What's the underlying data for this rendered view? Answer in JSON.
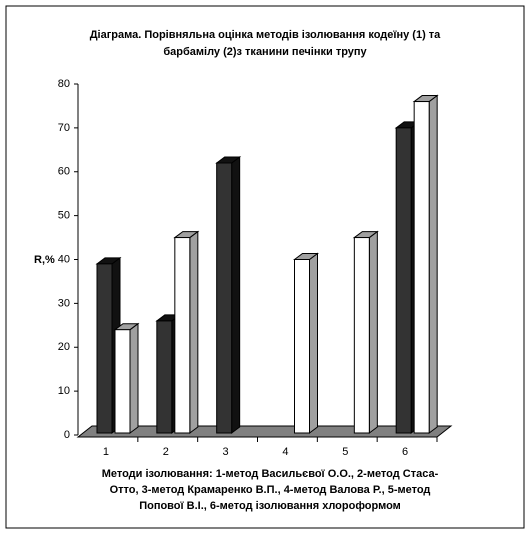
{
  "chart_data": {
    "type": "bar3d",
    "title": [
      "Діаграма. Порівняльна оцінка методів ізолювання кодеїну (1) та",
      "барбамілу (2)з тканини печінки трупу"
    ],
    "y_label": "R,%",
    "x_label": [
      "Методи ізолювання: 1-метод Васильєвої О.О., 2-метод Стаса-",
      "Отто, 3-метод Крамаренко В.П., 4-метод Валова Р., 5-метод",
      "Попової В.І., 6-метод ізолювання хлороформом"
    ],
    "categories": [
      "1",
      "2",
      "3",
      "4",
      "5",
      "6"
    ],
    "series": [
      {
        "color": "#333333",
        "values": [
          39,
          26,
          62,
          null,
          null,
          70
        ]
      },
      {
        "color": "#ffffff",
        "values": [
          24,
          45,
          null,
          40,
          45,
          76
        ]
      }
    ],
    "ylim": [
      0,
      80
    ],
    "yticks": [
      0,
      10,
      20,
      30,
      40,
      50,
      60,
      70,
      80
    ]
  }
}
